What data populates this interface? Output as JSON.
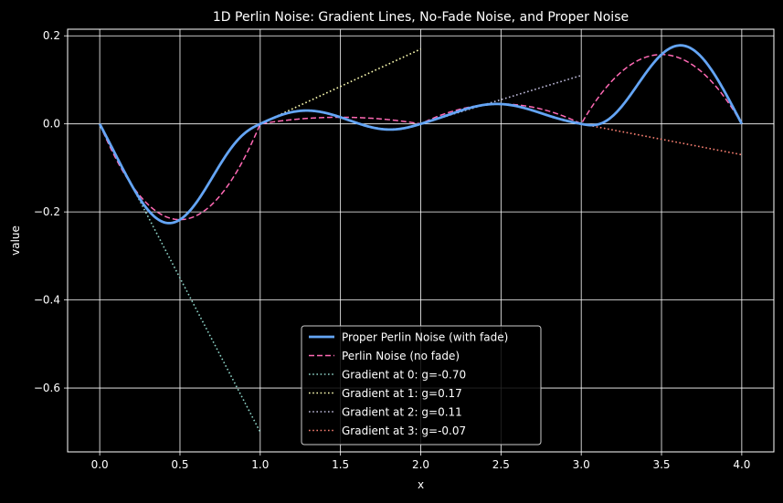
{
  "chart_data": {
    "type": "line",
    "title": "1D Perlin Noise: Gradient Lines, No-Fade Noise, and Proper Noise",
    "xlabel": "x",
    "ylabel": "value",
    "xlim": [
      -0.2,
      4.2
    ],
    "ylim": [
      -0.745,
      0.215
    ],
    "grid": true,
    "legend_position": "bottom-center",
    "x_ticks": [
      0.0,
      0.5,
      1.0,
      1.5,
      2.0,
      2.5,
      3.0,
      3.5,
      4.0
    ],
    "x_tick_labels": [
      "0.0",
      "0.5",
      "1.0",
      "1.5",
      "2.0",
      "2.5",
      "3.0",
      "3.5",
      "4.0"
    ],
    "y_ticks": [
      0.2,
      0.0,
      -0.2,
      -0.4,
      -0.6
    ],
    "y_tick_labels": [
      "0.2",
      "0.0",
      "−0.2",
      "−0.4",
      "−0.6"
    ],
    "gradients": [
      -0.7,
      0.17,
      0.11,
      -0.07
    ],
    "series": [
      {
        "name": "Proper Perlin Noise (with fade)",
        "kind": "fade-noise",
        "color": "#64a5f5",
        "style": "solid"
      },
      {
        "name": "Perlin Noise (no fade)",
        "kind": "linear-noise",
        "color": "#ff69b4",
        "style": "dashed"
      },
      {
        "name": "Gradient at 0: g=-0.70",
        "kind": "gradient-line",
        "origin": 0,
        "x": [
          0.0,
          1.0
        ],
        "y": [
          0.0,
          -0.7
        ],
        "color": "#8dd3c7",
        "style": "dotted"
      },
      {
        "name": "Gradient at 1: g=0.17",
        "kind": "gradient-line",
        "origin": 1,
        "x": [
          1.0,
          2.0
        ],
        "y": [
          0.0,
          0.17
        ],
        "color": "#ffffb3",
        "style": "dotted"
      },
      {
        "name": "Gradient at 2: g=0.11",
        "kind": "gradient-line",
        "origin": 2,
        "x": [
          2.0,
          3.0
        ],
        "y": [
          0.0,
          0.11
        ],
        "color": "#bebada",
        "style": "dotted"
      },
      {
        "name": "Gradient at 3: g=-0.07",
        "kind": "gradient-line",
        "origin": 3,
        "x": [
          3.0,
          4.0
        ],
        "y": [
          0.0,
          -0.07
        ],
        "color": "#fb8072",
        "style": "dotted"
      }
    ]
  },
  "colors": {
    "background": "#000000",
    "axes": "#ffffff",
    "grid": "#ffffff",
    "legend_bg": "#000000",
    "legend_border": "#cccccc"
  }
}
